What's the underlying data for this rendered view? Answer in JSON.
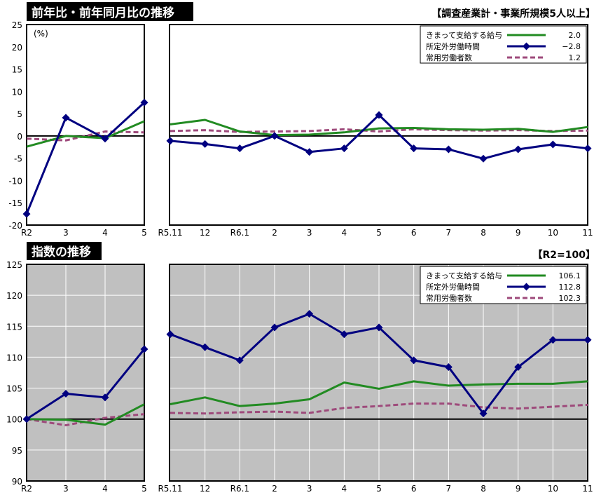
{
  "header": {
    "title_top": "前年比・前年同月比の推移",
    "title_bottom": "指数の推移",
    "subtitle_top": "【調査産業計・事業所規模5人以上】",
    "subtitle_bottom": "【R2=100】",
    "unit_label": "(%)"
  },
  "colors": {
    "wage": "#228B22",
    "overtime": "#000080",
    "employees": "#9E4A7B",
    "plot_bg_bottom": "#C0C0C0"
  },
  "legend_top": [
    {
      "key": "wage",
      "label": "きまって支給する給与",
      "value": "2.0",
      "icon": "line-green"
    },
    {
      "key": "overtime",
      "label": "所定外労働時間",
      "value": "−2.8",
      "icon": "line-diamond-navy"
    },
    {
      "key": "employees",
      "label": "常用労働者数",
      "value": "1.2",
      "icon": "line-dashed-purple"
    }
  ],
  "legend_bottom": [
    {
      "key": "wage",
      "label": "きまって支給する給与",
      "value": "106.1",
      "icon": "line-green"
    },
    {
      "key": "overtime",
      "label": "所定外労働時間",
      "value": "112.8",
      "icon": "line-diamond-navy"
    },
    {
      "key": "employees",
      "label": "常用労働者数",
      "value": "102.3",
      "icon": "line-dashed-purple"
    }
  ],
  "chart_data": [
    {
      "type": "line",
      "panel": "top-left",
      "categories": [
        "R2",
        "3",
        "4",
        "5"
      ],
      "ylim": [
        -20,
        25
      ],
      "yticks": [
        -20,
        -15,
        -10,
        -5,
        0,
        5,
        10,
        15,
        20,
        25
      ],
      "grid": false,
      "series": [
        {
          "name": "きまって支給する給与",
          "key": "wage",
          "values": [
            -2.4,
            0.0,
            -0.5,
            3.3
          ]
        },
        {
          "name": "所定外労働時間",
          "key": "overtime",
          "values": [
            -17.5,
            4.1,
            -0.6,
            7.5
          ]
        },
        {
          "name": "常用労働者数",
          "key": "employees",
          "values": [
            -0.6,
            -1.0,
            1.0,
            0.8
          ]
        }
      ]
    },
    {
      "type": "line",
      "panel": "top-right",
      "categories": [
        "R5.11",
        "12",
        "R6.1",
        "2",
        "3",
        "4",
        "5",
        "6",
        "7",
        "8",
        "9",
        "10",
        "11"
      ],
      "ylim": [
        -20,
        25
      ],
      "grid": false,
      "legend": "top-right",
      "series": [
        {
          "name": "きまって支給する給与",
          "key": "wage",
          "values": [
            2.6,
            3.6,
            1.0,
            0.2,
            0.3,
            0.8,
            1.7,
            1.8,
            1.5,
            1.4,
            1.6,
            0.9,
            2.0
          ]
        },
        {
          "name": "所定外労働時間",
          "key": "overtime",
          "values": [
            -1.1,
            -1.8,
            -2.8,
            0.0,
            -3.6,
            -2.8,
            4.7,
            -2.8,
            -3.0,
            -5.1,
            -3.0,
            -1.9,
            -2.8
          ]
        },
        {
          "name": "常用労働者数",
          "key": "employees",
          "values": [
            1.1,
            1.3,
            0.9,
            1.0,
            1.1,
            1.5,
            1.0,
            1.5,
            1.3,
            1.2,
            1.3,
            1.1,
            1.2
          ]
        }
      ]
    },
    {
      "type": "line",
      "panel": "bottom-left",
      "categories": [
        "R2",
        "3",
        "4",
        "5"
      ],
      "ylim": [
        90,
        125
      ],
      "yticks": [
        90,
        95,
        100,
        105,
        110,
        115,
        120,
        125
      ],
      "grid": true,
      "series": [
        {
          "name": "きまって支給する給与",
          "key": "wage",
          "values": [
            100.0,
            99.9,
            99.1,
            102.4
          ]
        },
        {
          "name": "所定外労働時間",
          "key": "overtime",
          "values": [
            100.0,
            104.1,
            103.5,
            111.3
          ]
        },
        {
          "name": "常用労働者数",
          "key": "employees",
          "values": [
            100.0,
            99.0,
            100.2,
            100.8
          ]
        }
      ]
    },
    {
      "type": "line",
      "panel": "bottom-right",
      "categories": [
        "R5.11",
        "12",
        "R6.1",
        "2",
        "3",
        "4",
        "5",
        "6",
        "7",
        "8",
        "9",
        "10",
        "11"
      ],
      "ylim": [
        90,
        125
      ],
      "grid": true,
      "legend": "top-right",
      "series": [
        {
          "name": "きまって支給する給与",
          "key": "wage",
          "values": [
            102.4,
            103.5,
            102.1,
            102.5,
            103.2,
            105.9,
            104.9,
            106.1,
            105.4,
            105.6,
            105.7,
            105.7,
            106.1
          ]
        },
        {
          "name": "所定外労働時間",
          "key": "overtime",
          "values": [
            113.7,
            111.6,
            109.5,
            114.8,
            117.0,
            113.7,
            114.8,
            109.5,
            108.4,
            100.9,
            108.4,
            112.8,
            112.8
          ]
        },
        {
          "name": "常用労働者数",
          "key": "employees",
          "values": [
            101.0,
            100.9,
            101.1,
            101.2,
            101.0,
            101.8,
            102.1,
            102.5,
            102.5,
            101.9,
            101.7,
            102.0,
            102.3
          ]
        }
      ]
    }
  ]
}
